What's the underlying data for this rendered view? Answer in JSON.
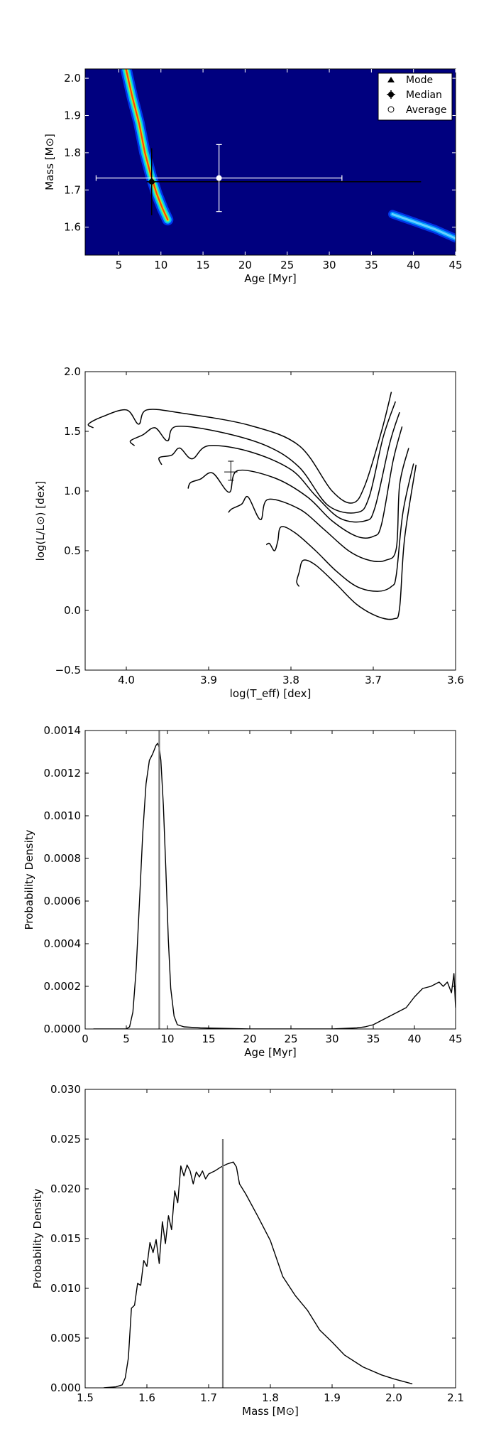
{
  "chart_data": [
    {
      "type": "heatmap",
      "xlabel": "Age [Myr]",
      "ylabel": "Mass [M⊙]",
      "xlim": [
        1,
        45
      ],
      "ylim": [
        1.525,
        2.025
      ],
      "xticks": [
        5,
        10,
        15,
        20,
        25,
        30,
        35,
        40,
        45
      ],
      "yticks": [
        1.6,
        1.7,
        1.8,
        1.9,
        2.0
      ],
      "tick_labels_x": [
        "5",
        "10",
        "15",
        "20",
        "25",
        "30",
        "35",
        "40",
        "45"
      ],
      "tick_labels_y": [
        "1.6",
        "1.7",
        "1.8",
        "1.9",
        "2.0"
      ],
      "background_color": "#00007f",
      "legend": {
        "placement": "top-right",
        "entries": [
          {
            "label": "Mode",
            "marker": "triangle"
          },
          {
            "label": "Median",
            "marker": "filled-circle-errorbar"
          },
          {
            "label": "Average",
            "marker": "open-circle"
          }
        ]
      },
      "mode": {
        "x": 8.9,
        "y": 1.725
      },
      "median": {
        "x": 8.9,
        "y": 1.722,
        "xerr": [
          0.6,
          32.0
        ],
        "yerr": [
          0.09,
          0.09
        ],
        "color": "#000000"
      },
      "average": {
        "x": 16.9,
        "y": 1.732,
        "xerr": [
          14.6,
          14.6
        ],
        "yerr": [
          0.09,
          0.09
        ],
        "color": "#ffffff"
      },
      "density_ridges": [
        {
          "name": "main",
          "points": [
            [
              5.6,
              2.05
            ],
            [
              6.6,
              1.95
            ],
            [
              7.4,
              1.88
            ],
            [
              8.1,
              1.8
            ],
            [
              8.8,
              1.74
            ],
            [
              9.5,
              1.69
            ],
            [
              10.2,
              1.65
            ],
            [
              10.8,
              1.62
            ]
          ]
        },
        {
          "name": "secondary",
          "points": [
            [
              37.5,
              1.635
            ],
            [
              40,
              1.615
            ],
            [
              42.5,
              1.595
            ],
            [
              45,
              1.57
            ]
          ]
        }
      ]
    },
    {
      "type": "line",
      "xlabel": "log(T_eff) [dex]",
      "ylabel": "log(L/L⊙) [dex]",
      "xlim": [
        4.05,
        3.6
      ],
      "ylim": [
        -0.5,
        2.0
      ],
      "xticks": [
        4.0,
        3.9,
        3.8,
        3.7,
        3.6
      ],
      "yticks": [
        -0.5,
        0.0,
        0.5,
        1.0,
        1.5,
        2.0
      ],
      "tick_labels_x": [
        "4.0",
        "3.9",
        "3.8",
        "3.7",
        "3.6"
      ],
      "tick_labels_y": [
        "−0.5",
        "0.0",
        "0.5",
        "1.0",
        "1.5",
        "2.0"
      ],
      "series": [
        {
          "points": [
            [
              4.04,
              1.53
            ],
            [
              4.046,
              1.56
            ],
            [
              4.03,
              1.62
            ],
            [
              4.0,
              1.68
            ],
            [
              3.985,
              1.56
            ],
            [
              3.975,
              1.68
            ],
            [
              3.93,
              1.65
            ],
            [
              3.85,
              1.55
            ],
            [
              3.79,
              1.38
            ],
            [
              3.75,
              1.0
            ],
            [
              3.725,
              0.9
            ],
            [
              3.71,
              1.05
            ],
            [
              3.69,
              1.5
            ],
            [
              3.678,
              1.83
            ]
          ]
        },
        {
          "points": [
            [
              3.99,
              1.38
            ],
            [
              3.995,
              1.42
            ],
            [
              3.98,
              1.47
            ],
            [
              3.965,
              1.53
            ],
            [
              3.95,
              1.42
            ],
            [
              3.94,
              1.54
            ],
            [
              3.89,
              1.5
            ],
            [
              3.83,
              1.38
            ],
            [
              3.79,
              1.2
            ],
            [
              3.755,
              0.88
            ],
            [
              3.72,
              0.82
            ],
            [
              3.705,
              0.95
            ],
            [
              3.688,
              1.45
            ],
            [
              3.673,
              1.75
            ]
          ]
        },
        {
          "points": [
            [
              3.957,
              1.22
            ],
            [
              3.96,
              1.28
            ],
            [
              3.945,
              1.3
            ],
            [
              3.935,
              1.36
            ],
            [
              3.92,
              1.27
            ],
            [
              3.9,
              1.38
            ],
            [
              3.85,
              1.33
            ],
            [
              3.8,
              1.18
            ],
            [
              3.77,
              0.96
            ],
            [
              3.74,
              0.77
            ],
            [
              3.71,
              0.75
            ],
            [
              3.698,
              0.86
            ],
            [
              3.68,
              1.4
            ],
            [
              3.668,
              1.66
            ]
          ]
        },
        {
          "points": [
            [
              3.925,
              1.02
            ],
            [
              3.922,
              1.07
            ],
            [
              3.91,
              1.1
            ],
            [
              3.895,
              1.15
            ],
            [
              3.875,
              0.99
            ],
            [
              3.865,
              1.17
            ],
            [
              3.82,
              1.11
            ],
            [
              3.78,
              0.95
            ],
            [
              3.75,
              0.75
            ],
            [
              3.72,
              0.62
            ],
            [
              3.7,
              0.62
            ],
            [
              3.69,
              0.72
            ],
            [
              3.676,
              1.25
            ],
            [
              3.665,
              1.54
            ]
          ]
        },
        {
          "points": [
            [
              3.876,
              0.82
            ],
            [
              3.872,
              0.85
            ],
            [
              3.86,
              0.89
            ],
            [
              3.852,
              0.95
            ],
            [
              3.837,
              0.76
            ],
            [
              3.828,
              0.93
            ],
            [
              3.79,
              0.85
            ],
            [
              3.76,
              0.68
            ],
            [
              3.73,
              0.5
            ],
            [
              3.705,
              0.42
            ],
            [
              3.685,
              0.42
            ],
            [
              3.672,
              0.52
            ],
            [
              3.668,
              1.05
            ],
            [
              3.657,
              1.36
            ]
          ]
        },
        {
          "points": [
            [
              3.83,
              0.55
            ],
            [
              3.826,
              0.56
            ],
            [
              3.82,
              0.5
            ],
            [
              3.816,
              0.58
            ],
            [
              3.812,
              0.7
            ],
            [
              3.795,
              0.65
            ],
            [
              3.77,
              0.5
            ],
            [
              3.745,
              0.33
            ],
            [
              3.72,
              0.2
            ],
            [
              3.695,
              0.16
            ],
            [
              3.678,
              0.2
            ],
            [
              3.672,
              0.3
            ],
            [
              3.664,
              0.82
            ],
            [
              3.651,
              1.23
            ]
          ]
        },
        {
          "points": [
            [
              3.79,
              0.2
            ],
            [
              3.793,
              0.24
            ],
            [
              3.79,
              0.32
            ],
            [
              3.785,
              0.42
            ],
            [
              3.77,
              0.38
            ],
            [
              3.745,
              0.22
            ],
            [
              3.72,
              0.05
            ],
            [
              3.695,
              -0.05
            ],
            [
              3.675,
              -0.07
            ],
            [
              3.668,
              0.02
            ],
            [
              3.662,
              0.6
            ],
            [
              3.648,
              1.22
            ]
          ]
        }
      ],
      "point": {
        "x": 3.873,
        "y": 1.16,
        "xerr": [
          0.008,
          0.008
        ],
        "yerr": [
          0.09,
          0.07
        ]
      }
    },
    {
      "type": "line",
      "xlabel": "Age [Myr]",
      "ylabel": "Probability Density",
      "xlim": [
        0,
        45
      ],
      "ylim": [
        0,
        0.0014
      ],
      "xticks": [
        0,
        5,
        10,
        15,
        20,
        25,
        30,
        35,
        40,
        45
      ],
      "yticks": [
        0.0,
        0.0002,
        0.0004,
        0.0006,
        0.0008,
        0.001,
        0.0012,
        0.0014
      ],
      "tick_labels_x": [
        "0",
        "5",
        "10",
        "15",
        "20",
        "25",
        "30",
        "35",
        "40",
        "45"
      ],
      "tick_labels_y": [
        "0.0000",
        "0.0002",
        "0.0004",
        "0.0006",
        "0.0008",
        "0.0010",
        "0.0012",
        "0.0014"
      ],
      "series": [
        {
          "x": [
            1,
            3,
            5,
            5.4,
            5.8,
            6.2,
            6.6,
            7.0,
            7.4,
            7.8,
            8.2,
            8.6,
            8.8,
            9.0,
            9.2,
            9.5,
            9.8,
            10.1,
            10.4,
            10.8,
            11.2,
            12,
            14,
            20,
            30,
            33,
            34,
            35,
            36,
            37,
            38,
            39,
            40,
            41,
            42,
            43,
            43.5,
            44,
            44.5,
            44.8,
            45
          ],
          "y": [
            0,
            0,
            0,
            1e-05,
            8e-05,
            0.00028,
            0.0006,
            0.00092,
            0.00115,
            0.00126,
            0.00129,
            0.00133,
            0.00134,
            0.00132,
            0.00126,
            0.00105,
            0.00075,
            0.00042,
            0.00019,
            6e-05,
            2e-05,
            1e-05,
            5e-06,
            0,
            0,
            5e-06,
            1e-05,
            2e-05,
            4e-05,
            6e-05,
            8e-05,
            0.0001,
            0.00015,
            0.00019,
            0.0002,
            0.00022,
            0.0002,
            0.00022,
            0.00017,
            0.00026,
            0.0001
          ]
        }
      ],
      "vline": {
        "x": 9.0,
        "color": "#777777"
      }
    },
    {
      "type": "line",
      "xlabel": "Mass [M⊙]",
      "ylabel": "Probability Density",
      "xlim": [
        1.5,
        2.1
      ],
      "ylim": [
        0,
        0.03
      ],
      "xticks": [
        1.5,
        1.6,
        1.7,
        1.8,
        1.9,
        2.0,
        2.1
      ],
      "yticks": [
        0.0,
        0.005,
        0.01,
        0.015,
        0.02,
        0.025,
        0.03
      ],
      "tick_labels_x": [
        "1.5",
        "1.6",
        "1.7",
        "1.8",
        "1.9",
        "2.0",
        "2.1"
      ],
      "tick_labels_y": [
        "0.000",
        "0.005",
        "0.010",
        "0.015",
        "0.020",
        "0.025",
        "0.030"
      ],
      "series": [
        {
          "x": [
            1.53,
            1.55,
            1.56,
            1.565,
            1.57,
            1.575,
            1.58,
            1.585,
            1.59,
            1.595,
            1.6,
            1.605,
            1.61,
            1.615,
            1.62,
            1.625,
            1.63,
            1.635,
            1.64,
            1.645,
            1.65,
            1.655,
            1.66,
            1.665,
            1.67,
            1.675,
            1.68,
            1.685,
            1.69,
            1.695,
            1.7,
            1.71,
            1.72,
            1.73,
            1.74,
            1.745,
            1.75,
            1.76,
            1.78,
            1.8,
            1.82,
            1.84,
            1.86,
            1.88,
            1.9,
            1.92,
            1.95,
            1.98,
            2.0,
            2.03
          ],
          "y": [
            0.0,
            0.0001,
            0.0003,
            0.001,
            0.003,
            0.008,
            0.0083,
            0.0105,
            0.0103,
            0.0128,
            0.0122,
            0.0146,
            0.0136,
            0.0149,
            0.0125,
            0.0167,
            0.0145,
            0.0173,
            0.0159,
            0.0198,
            0.0186,
            0.0223,
            0.0213,
            0.0224,
            0.0218,
            0.0205,
            0.0217,
            0.0212,
            0.0218,
            0.021,
            0.0215,
            0.0218,
            0.0222,
            0.0225,
            0.0227,
            0.0222,
            0.0205,
            0.0195,
            0.0172,
            0.0148,
            0.0112,
            0.0093,
            0.0078,
            0.0058,
            0.0046,
            0.0033,
            0.0021,
            0.0013,
            0.0009,
            0.0004
          ]
        }
      ],
      "vline": {
        "x": 1.723,
        "y_top": 0.025,
        "color": "#777777"
      }
    }
  ]
}
